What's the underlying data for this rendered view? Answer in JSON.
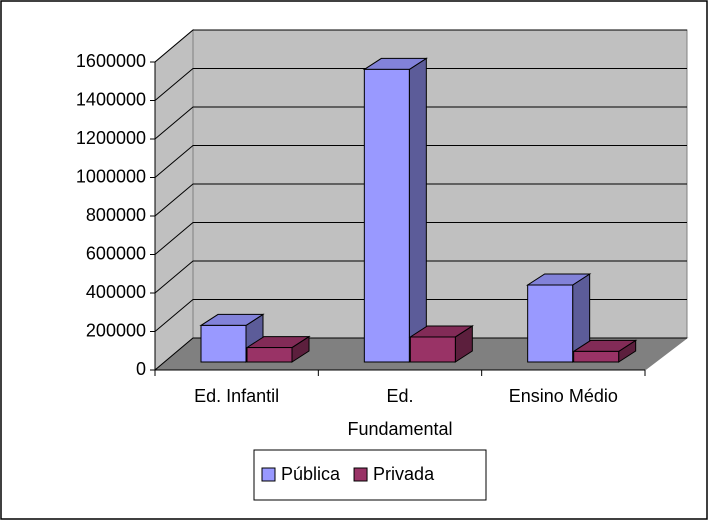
{
  "chart_data": {
    "type": "bar3d",
    "categories": [
      "Ed. Infantil",
      "Ed. Fundamental",
      "Ensino Médio"
    ],
    "series": [
      {
        "name": "Pública",
        "color": "#9999ff",
        "values": [
          190000,
          1520000,
          400000
        ]
      },
      {
        "name": "Privada",
        "color": "#993366",
        "values": [
          75000,
          130000,
          55000
        ]
      }
    ],
    "ylim": [
      0,
      1600000
    ],
    "yticks": [
      0,
      200000,
      400000,
      600000,
      800000,
      1000000,
      1200000,
      1400000,
      1600000
    ],
    "grid": true,
    "legend": "bottom"
  }
}
